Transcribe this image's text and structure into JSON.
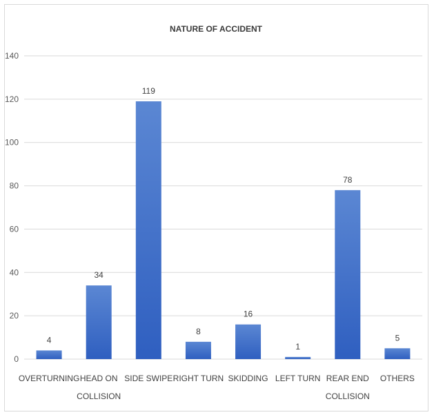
{
  "chart_data": {
    "type": "bar",
    "title": "NATURE OF ACCIDENT",
    "categories": [
      [
        "OVERTURNING"
      ],
      [
        "HEAD ON",
        "COLLISION"
      ],
      [
        "SIDE SWIPE"
      ],
      [
        "RIGHT TURN"
      ],
      [
        "SKIDDING"
      ],
      [
        "LEFT TURN"
      ],
      [
        "REAR END",
        "COLLISION"
      ],
      [
        "OTHERS"
      ]
    ],
    "values": [
      4,
      34,
      119,
      8,
      16,
      1,
      78,
      5
    ],
    "ylim": [
      0,
      140
    ],
    "yticks": [
      0,
      20,
      40,
      60,
      80,
      100,
      120,
      140
    ],
    "grid": true,
    "legend": "none",
    "colors": {
      "bar_top": "#5b87d3",
      "bar_bottom": "#2f5fc0",
      "grid": "#d9d9d9"
    }
  }
}
